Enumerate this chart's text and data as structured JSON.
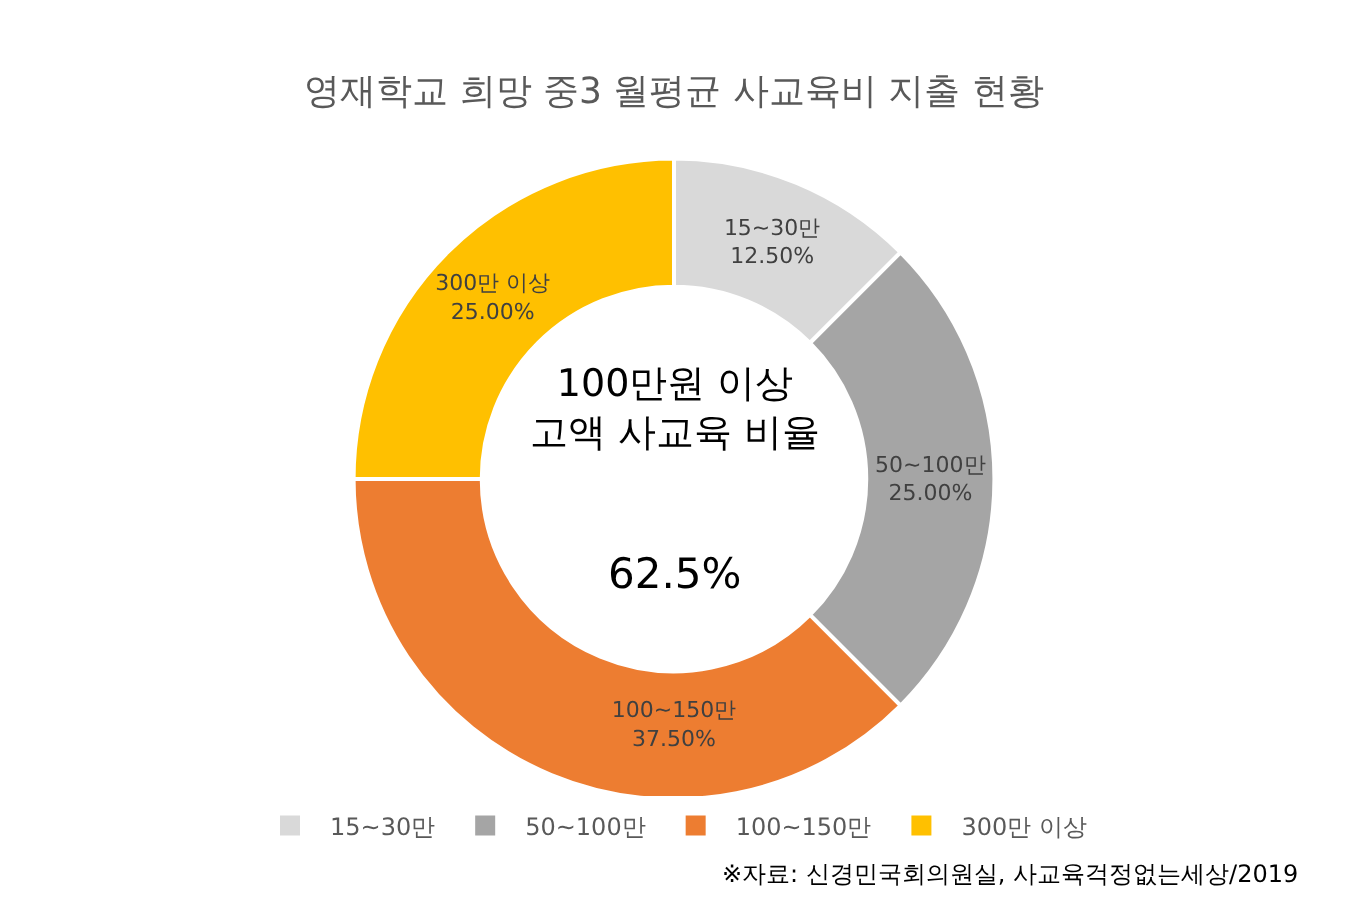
{
  "chart_data": {
    "type": "donut",
    "title": "영재학교 희망 중3 월평균 사교육비 지출 현황",
    "categories": [
      "15~30만",
      "50~100만",
      "100~150만",
      "300만 이상"
    ],
    "values": [
      12.5,
      25,
      37.5,
      25
    ],
    "value_labels": [
      "12.50%",
      "25.00%",
      "37.50%",
      "25.00%"
    ],
    "colors": [
      "#d9d9d9",
      "#a5a5a5",
      "#ed7d31",
      "#ffc000"
    ],
    "annotations": [
      "100만원 이상\n고액 사교육 비율",
      "62.5%",
      "※자료: 신경민국회의원실, 사교육걱정없는세상/2019"
    ],
    "legend": "bottom"
  }
}
